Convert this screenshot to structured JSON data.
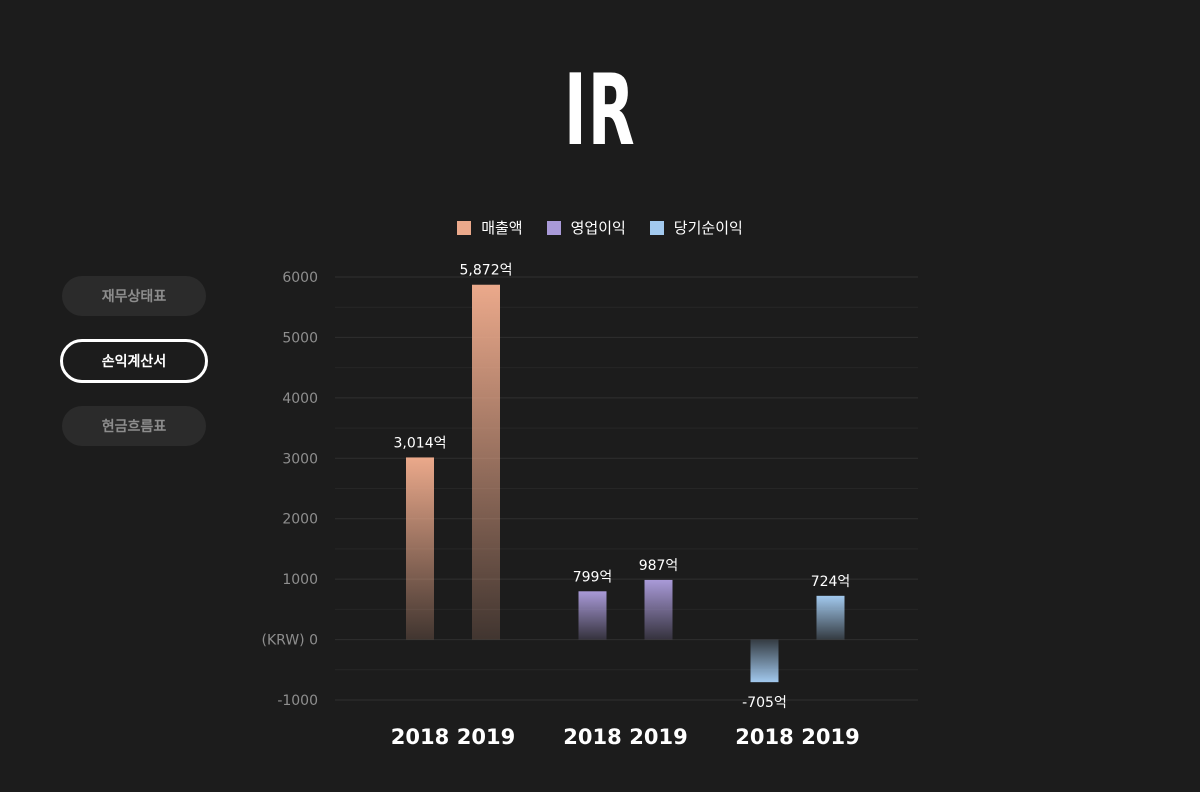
{
  "title": "IR",
  "side_tabs": [
    "재무상태표",
    "손익계산서",
    "현금흐름표"
  ],
  "active_tab": 1,
  "chart_data": {
    "type": "bar",
    "categories": [
      "2018",
      "2019"
    ],
    "series": [
      {
        "name": "매출액",
        "values": [
          3014,
          5872
        ],
        "labels": [
          "3,014억",
          "5,872억"
        ],
        "color": "#eba98b"
      },
      {
        "name": "영업이익",
        "values": [
          799,
          987
        ],
        "labels": [
          "799억",
          "987억"
        ],
        "color": "#a99ad8"
      },
      {
        "name": "당기순이익",
        "values": [
          -705,
          724
        ],
        "labels": [
          "-705억",
          "724억"
        ],
        "color": "#a2c9ee"
      }
    ],
    "y_ticks": [
      "6000",
      "5000",
      "4000",
      "3000",
      "2000",
      "1000",
      "0",
      "-1000"
    ],
    "y_zero_label": "(KRW) 0",
    "ylim": [
      -1000,
      6000
    ],
    "grid": true,
    "legend_position": "top-center"
  }
}
